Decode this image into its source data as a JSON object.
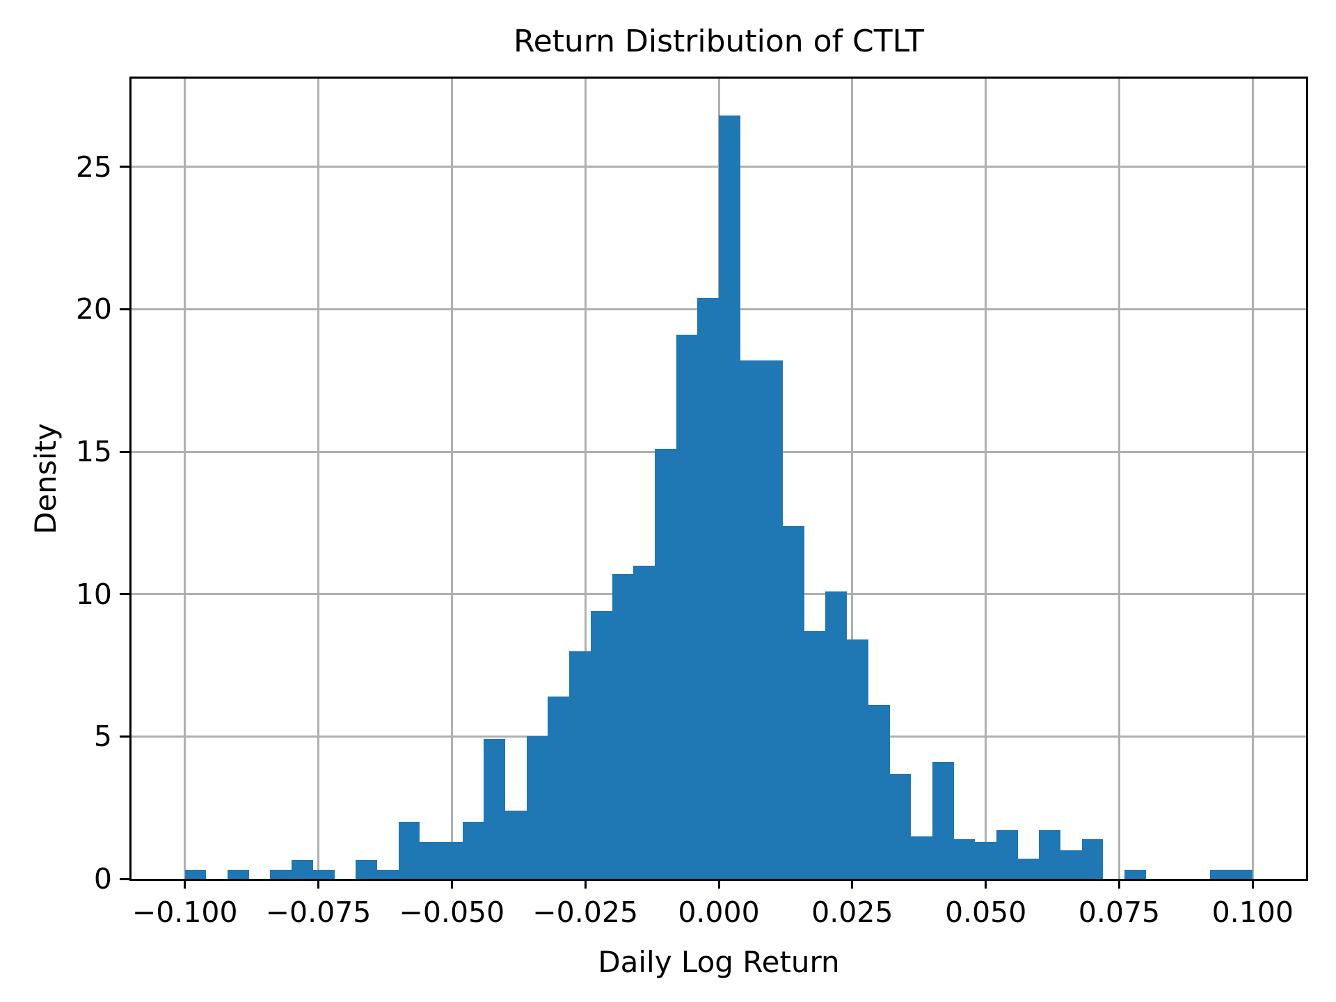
{
  "chart_data": {
    "type": "bar",
    "subtype": "histogram",
    "title": "Return Distribution of CTLT",
    "xlabel": "Daily Log Return",
    "ylabel": "Density",
    "bin_start": -0.1,
    "bin_width": 0.004,
    "values": [
      0.33,
      0,
      0.33,
      0,
      0.33,
      0.65,
      0.33,
      0,
      0.65,
      0.33,
      2.0,
      1.3,
      1.3,
      2.0,
      4.9,
      2.4,
      5.0,
      6.4,
      8.0,
      9.4,
      10.7,
      11.0,
      15.1,
      19.1,
      20.4,
      26.8,
      18.2,
      18.2,
      12.4,
      8.7,
      10.1,
      8.4,
      6.1,
      3.7,
      1.5,
      4.1,
      1.4,
      1.3,
      1.7,
      0.7,
      1.7,
      1.0,
      1.4,
      0,
      0.33,
      0,
      0,
      0,
      0.33,
      0.33
    ],
    "xlim": [
      -0.11,
      0.11
    ],
    "ylim": [
      0,
      28.1
    ],
    "xticks": [
      -0.1,
      -0.075,
      -0.05,
      -0.025,
      0.0,
      0.025,
      0.05,
      0.075,
      0.1
    ],
    "xtick_labels": [
      "−0.100",
      "−0.075",
      "−0.050",
      "−0.025",
      "0.000",
      "0.025",
      "0.050",
      "0.075",
      "0.100"
    ],
    "yticks": [
      0,
      5,
      10,
      15,
      20,
      25
    ],
    "ytick_labels": [
      "0",
      "5",
      "10",
      "15",
      "20",
      "25"
    ],
    "grid": true,
    "legend": null,
    "bar_color": "#1f77b4",
    "grid_color": "#b0b0b0",
    "axis_color": "#000000"
  }
}
